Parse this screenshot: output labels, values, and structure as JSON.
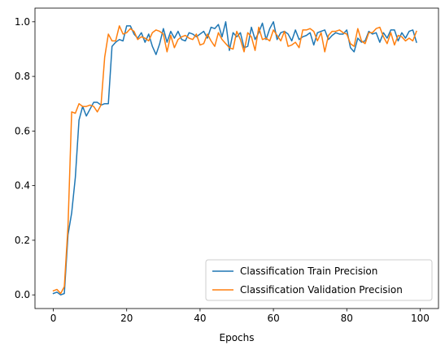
{
  "chart_data": {
    "type": "line",
    "xlabel": "Epochs",
    "ylabel": "",
    "xlim": [
      -5,
      105
    ],
    "ylim": [
      -0.05,
      1.05
    ],
    "xticks": [
      0,
      20,
      40,
      60,
      80,
      100
    ],
    "yticks": [
      0.0,
      0.2,
      0.4,
      0.6,
      0.8,
      1.0
    ],
    "legend_position": "lower-right",
    "grid": false,
    "series": [
      {
        "name": "Classification Train Precision",
        "color": "#1f77b4",
        "x": [
          0,
          1,
          2,
          3,
          4,
          5,
          6,
          7,
          8,
          9,
          10,
          11,
          12,
          13,
          14,
          15,
          16,
          17,
          18,
          19,
          20,
          21,
          22,
          23,
          24,
          25,
          26,
          27,
          28,
          29,
          30,
          31,
          32,
          33,
          34,
          35,
          36,
          37,
          38,
          39,
          40,
          41,
          42,
          43,
          44,
          45,
          46,
          47,
          48,
          49,
          50,
          51,
          52,
          53,
          54,
          55,
          56,
          57,
          58,
          59,
          60,
          61,
          62,
          63,
          64,
          65,
          66,
          67,
          68,
          69,
          70,
          71,
          72,
          73,
          74,
          75,
          76,
          77,
          78,
          79,
          80,
          81,
          82,
          83,
          84,
          85,
          86,
          87,
          88,
          89,
          90,
          91,
          92,
          93,
          94,
          95,
          96,
          97,
          98,
          99
        ],
        "values": [
          0.005,
          0.01,
          0.0,
          0.005,
          0.22,
          0.3,
          0.43,
          0.64,
          0.69,
          0.655,
          0.68,
          0.705,
          0.705,
          0.695,
          0.7,
          0.7,
          0.91,
          0.925,
          0.935,
          0.93,
          0.985,
          0.985,
          0.955,
          0.94,
          0.96,
          0.925,
          0.955,
          0.91,
          0.88,
          0.92,
          0.975,
          0.925,
          0.965,
          0.94,
          0.965,
          0.935,
          0.93,
          0.96,
          0.955,
          0.945,
          0.955,
          0.965,
          0.94,
          0.98,
          0.975,
          0.99,
          0.945,
          1.0,
          0.895,
          0.96,
          0.945,
          0.96,
          0.905,
          0.91,
          0.98,
          0.935,
          0.96,
          0.995,
          0.935,
          0.975,
          1.0,
          0.935,
          0.96,
          0.965,
          0.955,
          0.93,
          0.97,
          0.935,
          0.945,
          0.95,
          0.96,
          0.915,
          0.96,
          0.965,
          0.97,
          0.935,
          0.95,
          0.96,
          0.955,
          0.955,
          0.97,
          0.905,
          0.89,
          0.94,
          0.925,
          0.93,
          0.965,
          0.955,
          0.96,
          0.925,
          0.96,
          0.94,
          0.97,
          0.97,
          0.93,
          0.96,
          0.94,
          0.965,
          0.97,
          0.925
        ]
      },
      {
        "name": "Classification Validation Precision",
        "color": "#ff7f0e",
        "x": [
          0,
          1,
          2,
          3,
          4,
          5,
          6,
          7,
          8,
          9,
          10,
          11,
          12,
          13,
          14,
          15,
          16,
          17,
          18,
          19,
          20,
          21,
          22,
          23,
          24,
          25,
          26,
          27,
          28,
          29,
          30,
          31,
          32,
          33,
          34,
          35,
          36,
          37,
          38,
          39,
          40,
          41,
          42,
          43,
          44,
          45,
          46,
          47,
          48,
          49,
          50,
          51,
          52,
          53,
          54,
          55,
          56,
          57,
          58,
          59,
          60,
          61,
          62,
          63,
          64,
          65,
          66,
          67,
          68,
          69,
          70,
          71,
          72,
          73,
          74,
          75,
          76,
          77,
          78,
          79,
          80,
          81,
          82,
          83,
          84,
          85,
          86,
          87,
          88,
          89,
          90,
          91,
          92,
          93,
          94,
          95,
          96,
          97,
          98,
          99
        ],
        "values": [
          0.015,
          0.02,
          0.005,
          0.03,
          0.25,
          0.67,
          0.665,
          0.7,
          0.69,
          0.69,
          0.695,
          0.69,
          0.67,
          0.695,
          0.87,
          0.955,
          0.93,
          0.93,
          0.985,
          0.955,
          0.96,
          0.975,
          0.965,
          0.935,
          0.945,
          0.94,
          0.93,
          0.96,
          0.97,
          0.965,
          0.955,
          0.89,
          0.95,
          0.905,
          0.935,
          0.945,
          0.95,
          0.94,
          0.935,
          0.955,
          0.915,
          0.92,
          0.955,
          0.93,
          0.91,
          0.96,
          0.935,
          0.92,
          0.905,
          0.9,
          0.965,
          0.935,
          0.89,
          0.96,
          0.945,
          0.895,
          0.98,
          0.935,
          0.94,
          0.93,
          0.97,
          0.95,
          0.93,
          0.965,
          0.91,
          0.915,
          0.925,
          0.905,
          0.97,
          0.97,
          0.975,
          0.965,
          0.93,
          0.96,
          0.89,
          0.95,
          0.965,
          0.965,
          0.97,
          0.96,
          0.955,
          0.92,
          0.91,
          0.975,
          0.93,
          0.92,
          0.96,
          0.96,
          0.975,
          0.98,
          0.945,
          0.92,
          0.96,
          0.915,
          0.95,
          0.945,
          0.93,
          0.94,
          0.93,
          0.965
        ]
      }
    ]
  }
}
